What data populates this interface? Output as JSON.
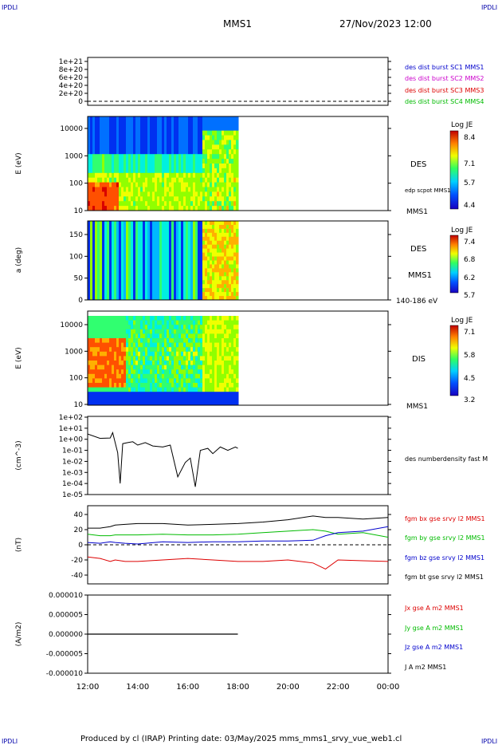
{
  "header": {
    "corner_tl": "IPDLI",
    "corner_tr": "IPDLI",
    "corner_bl": "IPDLI",
    "corner_br": "IPDLI",
    "mission": "MMS1",
    "datetime": "27/Nov/2023 12:00"
  },
  "footer": {
    "text": "Produced by cl (IRAP)   Printing date: 03/May/2025   mms_mms1_srvy_vue_web1.cl"
  },
  "colors": {
    "red": "#dd0000",
    "magenta": "#cc00cc",
    "green": "#00bb00",
    "blue": "#0000cc",
    "black": "#000000"
  },
  "panel1": {
    "yticks": [
      "1e+21",
      "8e+20",
      "6e+20",
      "4e+20",
      "2e+20",
      "0"
    ],
    "legend": [
      {
        "text": "des dist burst SC1 MMS1",
        "color": "#0000cc"
      },
      {
        "text": "des dist burst SC2 MMS2",
        "color": "#cc00cc"
      },
      {
        "text": "des dist burst SC3 MMS3",
        "color": "#dd0000"
      },
      {
        "text": "des dist burst SC4 MMS4",
        "color": "#00bb00"
      }
    ]
  },
  "panel2": {
    "ylabel": "E (eV)",
    "yticks": [
      "10000",
      "1000",
      "100",
      "10"
    ],
    "label": "DES",
    "sub": "edp scpot MMS1",
    "bottom": "MMS1",
    "cb_title": "Log JE",
    "cb_ticks": [
      "8.4",
      "7.1",
      "5.7",
      "4.4"
    ]
  },
  "panel3": {
    "ylabel": "a (deg)",
    "yticks": [
      "150",
      "100",
      "50",
      "0"
    ],
    "label": "DES",
    "sub": "MMS1",
    "bottom": "140-186 eV",
    "cb_title": "Log JE",
    "cb_ticks": [
      "7.4",
      "6.8",
      "6.2",
      "5.7"
    ]
  },
  "panel4": {
    "ylabel": "E (eV)",
    "yticks": [
      "10000",
      "1000",
      "100",
      "10"
    ],
    "label": "DIS",
    "bottom": "MMS1",
    "cb_title": "Log JE",
    "cb_ticks": [
      "7.1",
      "5.8",
      "4.5",
      "3.2"
    ]
  },
  "panel5": {
    "ylabel": "(cm^-3)",
    "yticks": [
      "1e+02",
      "1e+01",
      "1e+00",
      "1e-01",
      "1e-02",
      "1e-03",
      "1e-04",
      "1e-05"
    ],
    "label": "des numberdensity fast M"
  },
  "panel6": {
    "ylabel": "(nT)",
    "yticks": [
      "40",
      "20",
      "0",
      "-20",
      "-40"
    ],
    "legend": [
      {
        "text": "fgm bx gse srvy l2 MMS1",
        "color": "#dd0000"
      },
      {
        "text": "fgm by gse srvy l2 MMS1",
        "color": "#00bb00"
      },
      {
        "text": "fgm bz gse srvy l2 MMS1",
        "color": "#0000cc"
      },
      {
        "text": "fgm bt gse srvy l2 MMS1",
        "color": "#000000"
      }
    ]
  },
  "panel7": {
    "ylabel": "(A/m2)",
    "yticks": [
      "0.000010",
      "0.000005",
      "0.000000",
      "-0.000005",
      "-0.000010"
    ],
    "legend": [
      {
        "text": "Jx gse A m2 MMS1",
        "color": "#dd0000"
      },
      {
        "text": "Jy gse A m2 MMS1",
        "color": "#00bb00"
      },
      {
        "text": "Jz gse A m2 MMS1",
        "color": "#0000cc"
      },
      {
        "text": "J A m2 MMS1",
        "color": "#000000"
      }
    ]
  },
  "xaxis": {
    "ticks": [
      "12:00",
      "14:00",
      "16:00",
      "18:00",
      "20:00",
      "22:00",
      "00:00"
    ]
  },
  "chart_data": {
    "type": "line",
    "x_range_hours": [
      12,
      24
    ],
    "data_coverage_hours": [
      12,
      18
    ],
    "density": {
      "x": [
        12.0,
        12.5,
        12.9,
        13.0,
        13.2,
        13.3,
        13.4,
        13.6,
        13.8,
        14.0,
        14.3,
        14.6,
        15.0,
        15.3,
        15.6,
        15.9,
        16.1,
        16.3,
        16.5,
        16.8,
        17.0,
        17.3,
        17.6,
        17.9,
        18.0
      ],
      "y": [
        3,
        1.2,
        1.3,
        4,
        0.06,
        0.0001,
        0.4,
        0.5,
        0.6,
        0.3,
        0.5,
        0.25,
        0.2,
        0.3,
        0.0004,
        0.008,
        0.02,
        5e-05,
        0.1,
        0.15,
        0.05,
        0.2,
        0.1,
        0.2,
        0.15
      ]
    },
    "b_field": {
      "x": [
        12.0,
        12.5,
        12.9,
        13.1,
        13.5,
        14.0,
        15.0,
        16.0,
        17.0,
        18.0,
        19.0,
        20.0,
        21.0,
        21.5,
        22.0,
        23.0,
        24.0
      ],
      "bx": [
        -16,
        -18,
        -22,
        -20,
        -22,
        -22,
        -20,
        -18,
        -20,
        -22,
        -22,
        -20,
        -24,
        -32,
        -20,
        -21,
        -22
      ],
      "by": [
        14,
        12,
        12,
        13,
        13,
        13,
        14,
        13,
        13,
        14,
        16,
        18,
        20,
        18,
        14,
        16,
        10
      ],
      "bz": [
        3,
        2,
        4,
        3,
        2,
        1,
        4,
        3,
        4,
        4,
        5,
        5,
        6,
        12,
        16,
        18,
        24
      ],
      "bt": [
        22,
        22,
        24,
        26,
        27,
        28,
        28,
        26,
        27,
        28,
        30,
        33,
        38,
        36,
        36,
        34,
        36
      ]
    },
    "current_density": {
      "x": [
        12,
        18
      ],
      "y": [
        0,
        0
      ]
    }
  }
}
